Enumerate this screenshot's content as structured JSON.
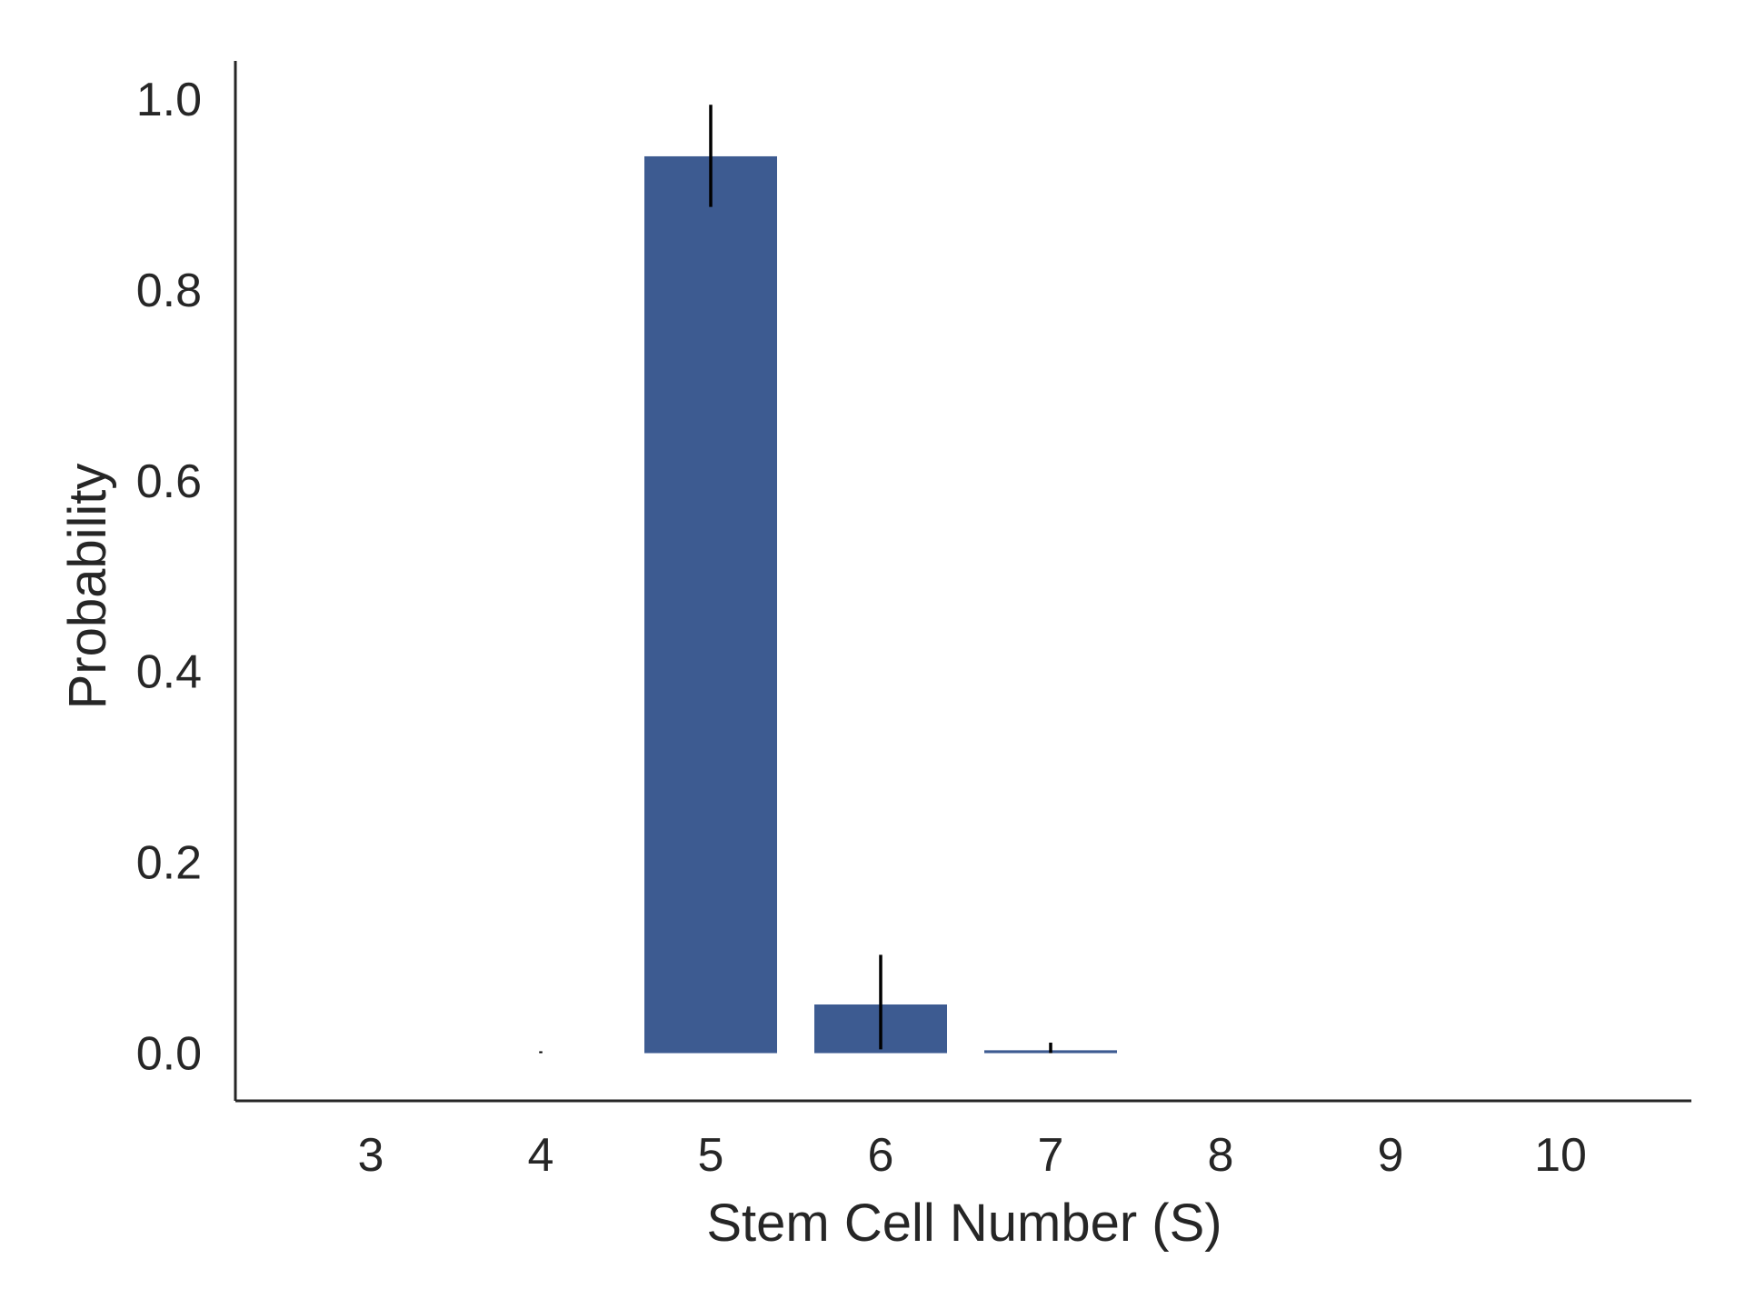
{
  "chart_data": {
    "type": "bar",
    "title": "",
    "xlabel": "Stem Cell Number (S)",
    "ylabel": "Probability",
    "categories": [
      "3",
      "4",
      "5",
      "6",
      "7",
      "8",
      "9",
      "10"
    ],
    "values": [
      0.0,
      0.0,
      0.94,
      0.051,
      0.003,
      0.0,
      0.0,
      0.0
    ],
    "error_low": [
      0.0,
      0.0,
      0.887,
      0.004,
      0.0,
      0.0,
      0.0,
      0.0
    ],
    "error_high": [
      0.0,
      0.001,
      0.994,
      0.103,
      0.011,
      0.0,
      0.0,
      0.0
    ],
    "ylim": [
      -0.05,
      1.04
    ],
    "yticks": [
      "0.0",
      "0.2",
      "0.4",
      "0.6",
      "0.8",
      "1.0"
    ],
    "ytick_values": [
      0.0,
      0.2,
      0.4,
      0.6,
      0.8,
      1.0
    ],
    "grid": false,
    "legend": "none",
    "bar_color": "#3d5b91",
    "error_color": "#000000",
    "axis_color": "#262626"
  }
}
